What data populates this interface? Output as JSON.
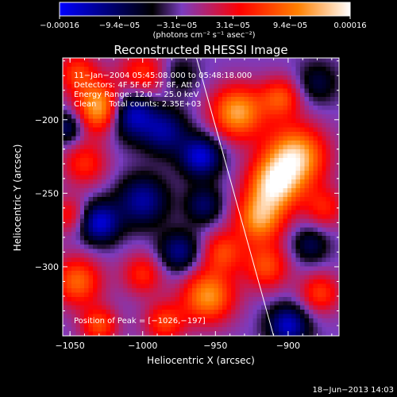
{
  "chart_data": {
    "type": "heatmap",
    "title": "Reconstructed RHESSI Image",
    "xlabel": "Heliocentric X (arcsec)",
    "ylabel": "Heliocentric Y (arcsec)",
    "xlim": [
      -1055,
      -865
    ],
    "ylim": [
      -347,
      -158
    ],
    "x_ticks": [
      -1050,
      -1000,
      -950,
      -900
    ],
    "y_ticks": [
      -200,
      -250,
      -300
    ],
    "x_tick_labels": [
      "−1050",
      "−1000",
      "−950",
      "−900"
    ],
    "y_tick_labels": [
      "−200",
      "−250",
      "−300"
    ],
    "colorbar": {
      "min": -0.00016,
      "max": 0.00016,
      "tick_values": [
        -0.00016,
        -9.4e-05,
        -3.1e-05,
        3.1e-05,
        9.4e-05,
        0.00016
      ],
      "tick_labels": [
        "−0.00016",
        "−9.4e−05",
        "−3.1e−05",
        "3.1e−05",
        "9.4e−05",
        "0.00016"
      ],
      "unit_label": "(photons cm⁻² s⁻¹ asec⁻²)",
      "colors": [
        "#0000ff",
        "#000000",
        "#7a3cc0",
        "#ff0000",
        "#ff8000",
        "#ffffff"
      ]
    },
    "annotations": [
      "11−Jan−2004 05:45:08.000 to 05:48:18.000",
      "Detectors: 4F 5F 6F 7F 8F, Att 0",
      "Energy Range: 12.0 − 25.0 keV",
      "Clean     Total counts: 2.35E+03"
    ],
    "peak_label": "Position of Peak = [−1026,−197]",
    "peak_position": [
      -1026,
      -197
    ],
    "limb_line": [
      [
        -963,
        -158
      ],
      [
        -910,
        -347
      ]
    ],
    "blobs": [
      {
        "x": -1028,
        "y": -192,
        "a": 1.1,
        "s": 12
      },
      {
        "x": -1045,
        "y": -168,
        "a": 0.55,
        "s": 10
      },
      {
        "x": -1040,
        "y": -230,
        "a": 0.5,
        "s": 11
      },
      {
        "x": -1010,
        "y": -195,
        "a": -0.9,
        "s": 12
      },
      {
        "x": -985,
        "y": -208,
        "a": -0.55,
        "s": 11
      },
      {
        "x": -960,
        "y": -225,
        "a": -0.75,
        "s": 10
      },
      {
        "x": -1000,
        "y": -170,
        "a": 0.55,
        "s": 12
      },
      {
        "x": -975,
        "y": -170,
        "a": -0.3,
        "s": 9
      },
      {
        "x": -935,
        "y": -195,
        "a": 0.9,
        "s": 13
      },
      {
        "x": -905,
        "y": -185,
        "a": 0.6,
        "s": 10
      },
      {
        "x": -880,
        "y": -175,
        "a": -0.35,
        "s": 10
      },
      {
        "x": -895,
        "y": -225,
        "a": 1.0,
        "s": 15
      },
      {
        "x": -910,
        "y": -245,
        "a": 0.9,
        "s": 13
      },
      {
        "x": -920,
        "y": -268,
        "a": 0.8,
        "s": 12
      },
      {
        "x": -875,
        "y": -260,
        "a": 0.45,
        "s": 10
      },
      {
        "x": -915,
        "y": -300,
        "a": 0.6,
        "s": 11
      },
      {
        "x": -878,
        "y": -318,
        "a": 0.55,
        "s": 10
      },
      {
        "x": -955,
        "y": -320,
        "a": 0.85,
        "s": 13
      },
      {
        "x": -945,
        "y": -290,
        "a": 0.55,
        "s": 10
      },
      {
        "x": -1045,
        "y": -310,
        "a": 0.7,
        "s": 12
      },
      {
        "x": -1050,
        "y": -265,
        "a": 0.45,
        "s": 9
      },
      {
        "x": -1030,
        "y": -270,
        "a": -0.75,
        "s": 10
      },
      {
        "x": -1000,
        "y": -255,
        "a": -0.6,
        "s": 12
      },
      {
        "x": -1000,
        "y": -305,
        "a": 0.5,
        "s": 10
      },
      {
        "x": -975,
        "y": -290,
        "a": -0.55,
        "s": 10
      },
      {
        "x": -985,
        "y": -338,
        "a": 0.55,
        "s": 10
      },
      {
        "x": -1030,
        "y": -340,
        "a": 0.6,
        "s": 9
      },
      {
        "x": -900,
        "y": -340,
        "a": -0.7,
        "s": 10
      },
      {
        "x": -885,
        "y": -285,
        "a": -0.4,
        "s": 9
      },
      {
        "x": -958,
        "y": -258,
        "a": -0.45,
        "s": 9
      },
      {
        "x": -1052,
        "y": -205,
        "a": -0.5,
        "s": 8
      }
    ]
  },
  "footer_date": "18−Jun−2013 14:03"
}
